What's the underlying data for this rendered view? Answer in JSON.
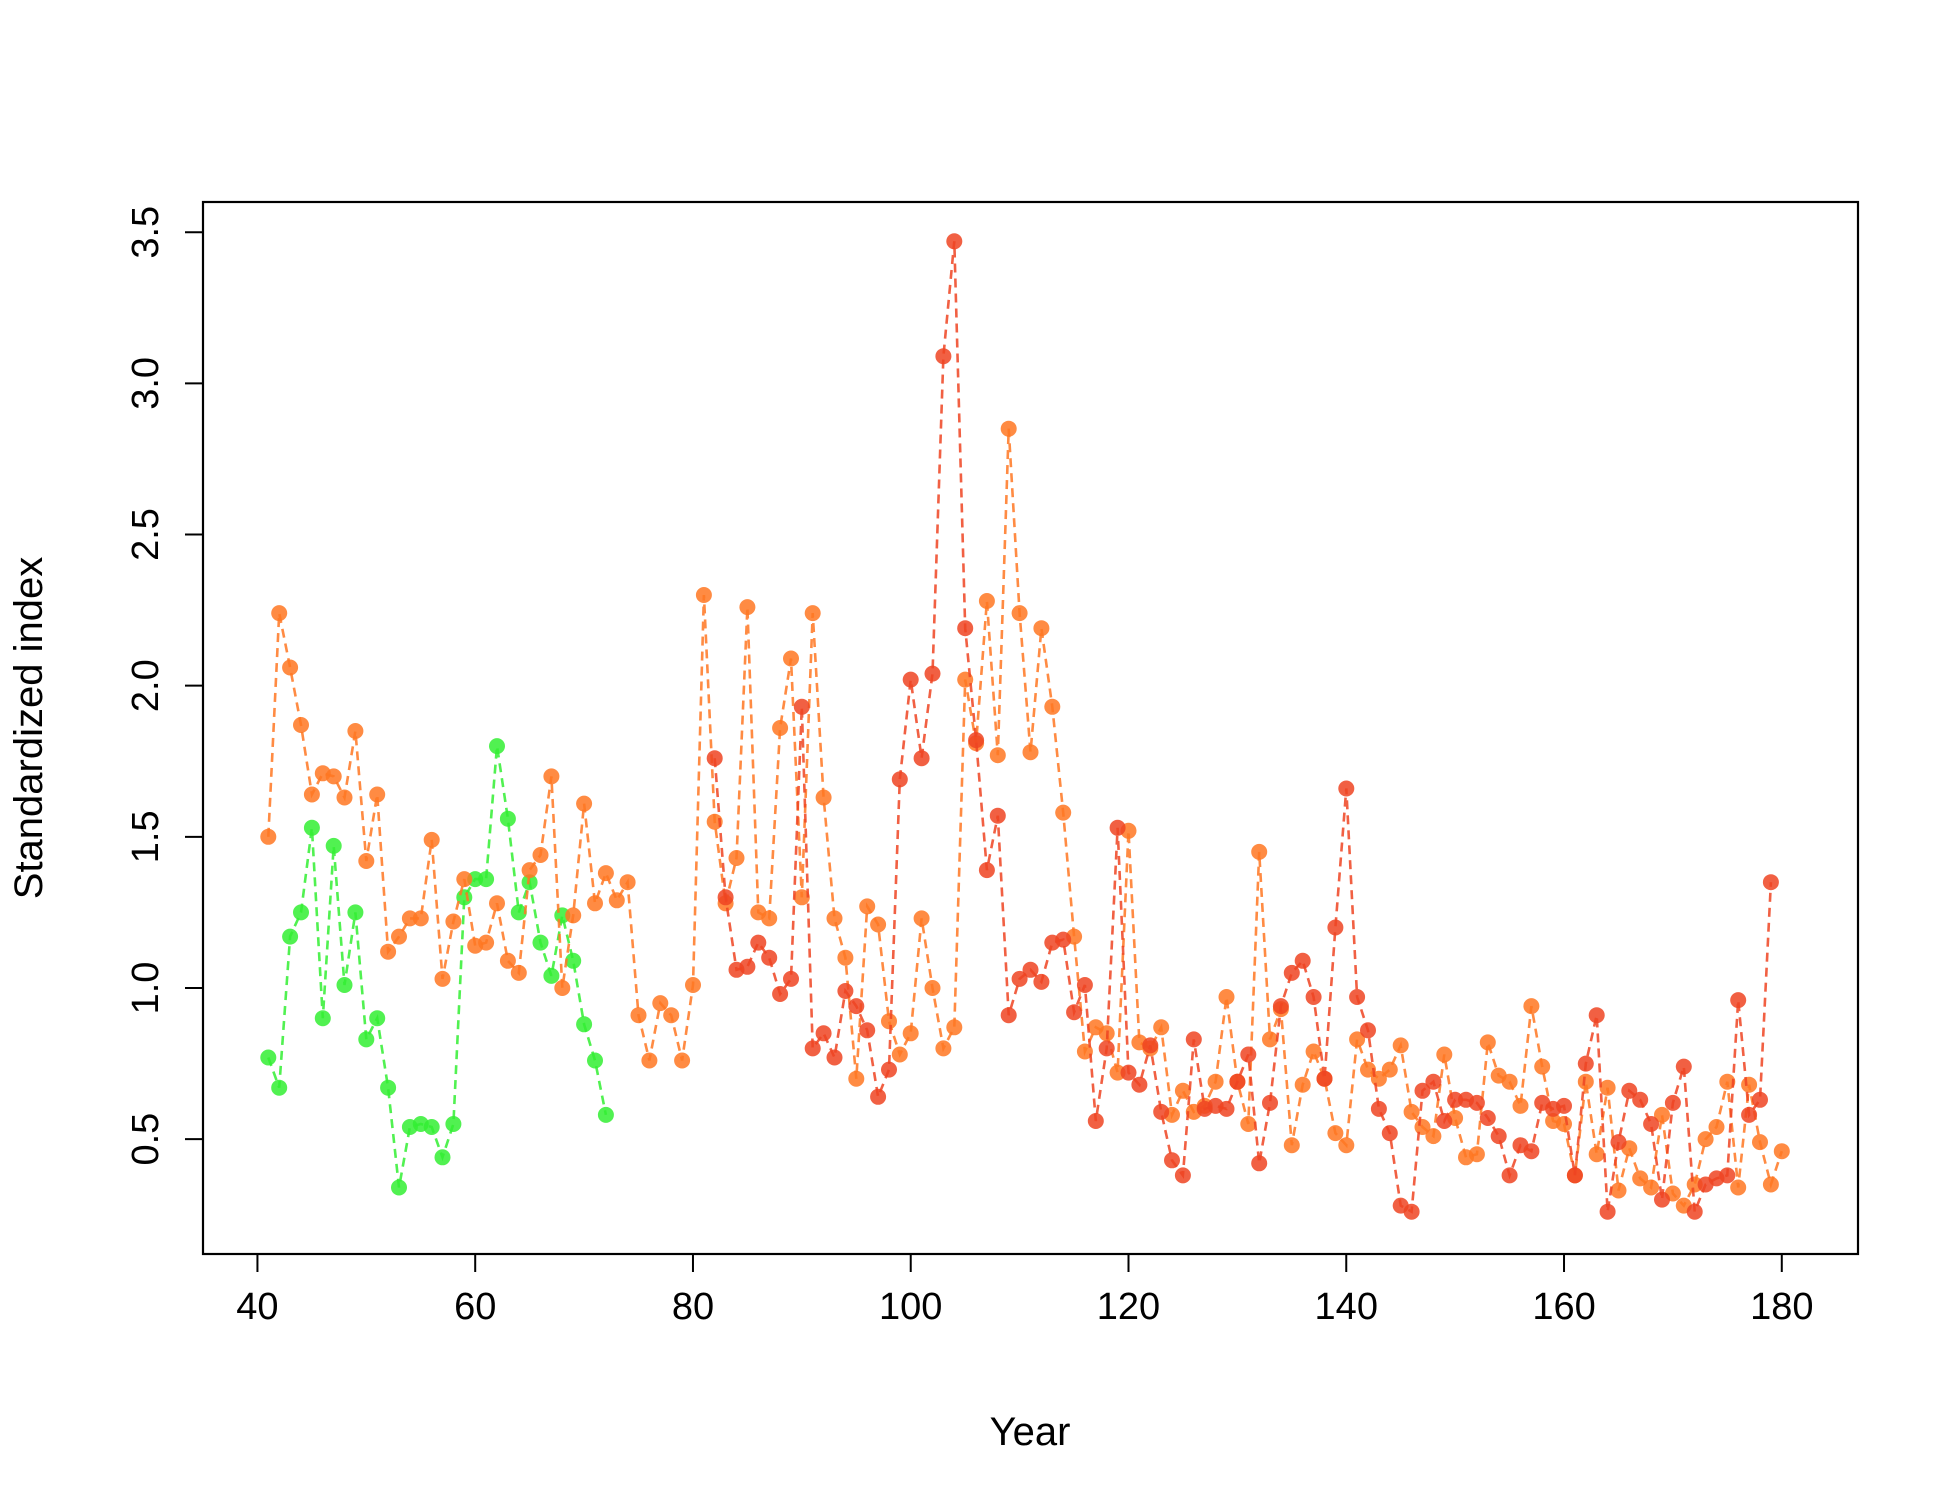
{
  "chart_data": {
    "type": "line",
    "xlabel": "Year",
    "ylabel": "Standardized index",
    "xlim": [
      35,
      187
    ],
    "ylim": [
      0.12,
      3.6
    ],
    "xticks": [
      40,
      60,
      80,
      100,
      120,
      140,
      160,
      180
    ],
    "yticks": [
      0.5,
      1.0,
      1.5,
      2.0,
      2.5,
      3.0,
      3.5
    ],
    "xtick_labels": [
      "40",
      "60",
      "80",
      "100",
      "120",
      "140",
      "160",
      "180"
    ],
    "ytick_labels": [
      "0.5",
      "1.0",
      "1.5",
      "2.0",
      "2.5",
      "3.0",
      "3.5"
    ],
    "grid": false,
    "legend": "none",
    "series": [
      {
        "color": "#33ee33",
        "line_style": "dashed",
        "x": [
          41,
          42,
          43,
          44,
          45,
          46,
          47,
          48,
          49,
          50,
          51,
          52,
          53,
          54,
          55,
          56,
          57,
          58,
          59,
          60,
          61,
          62,
          63,
          64,
          65,
          66,
          67,
          68,
          69,
          70,
          71,
          72
        ],
        "y": [
          0.77,
          0.67,
          1.17,
          1.25,
          1.53,
          0.9,
          1.47,
          1.01,
          1.25,
          0.83,
          0.9,
          0.67,
          0.34,
          0.54,
          0.55,
          0.54,
          0.44,
          0.55,
          1.3,
          1.36,
          1.36,
          1.8,
          1.56,
          1.25,
          1.35,
          1.15,
          1.04,
          1.24,
          1.09,
          0.88,
          0.76,
          0.58
        ]
      },
      {
        "color": "#ff7722",
        "line_style": "dashed",
        "x": [
          41,
          42,
          43,
          44,
          45,
          46,
          47,
          48,
          49,
          50,
          51,
          52,
          53,
          54,
          55,
          56,
          57,
          58,
          59,
          60,
          61,
          62,
          63,
          64,
          65,
          66,
          67,
          68,
          69,
          70,
          71,
          72,
          73,
          74,
          75,
          76,
          77,
          78,
          79,
          80,
          81,
          82,
          83,
          84,
          85,
          86,
          87,
          88,
          89,
          90,
          91,
          92,
          93,
          94,
          95,
          96,
          97,
          98,
          99,
          100,
          101,
          102,
          103,
          104,
          105,
          106,
          107,
          108,
          109,
          110,
          111,
          112,
          113,
          114,
          115,
          116,
          117,
          118,
          119,
          120,
          121,
          122,
          123,
          124,
          125,
          126,
          127,
          128,
          129,
          130,
          131,
          132,
          133,
          134,
          135,
          136,
          137,
          138,
          139,
          140,
          141,
          142,
          143,
          144,
          145,
          146,
          147,
          148,
          149,
          150,
          151,
          152,
          153,
          154,
          155,
          156,
          157,
          158,
          159,
          160,
          161,
          162,
          163,
          164,
          165,
          166,
          167,
          168,
          169,
          170,
          171,
          172,
          173,
          174,
          175,
          176,
          177,
          178,
          179,
          180
        ],
        "y": [
          1.5,
          2.24,
          2.06,
          1.87,
          1.64,
          1.71,
          1.7,
          1.63,
          1.85,
          1.42,
          1.64,
          1.12,
          1.17,
          1.23,
          1.23,
          1.49,
          1.03,
          1.22,
          1.36,
          1.14,
          1.15,
          1.28,
          1.09,
          1.05,
          1.39,
          1.44,
          1.7,
          1.0,
          1.24,
          1.61,
          1.28,
          1.38,
          1.29,
          1.35,
          0.91,
          0.76,
          0.95,
          0.91,
          0.76,
          1.01,
          2.3,
          1.55,
          1.28,
          1.43,
          2.26,
          1.25,
          1.23,
          1.86,
          2.09,
          1.3,
          2.24,
          1.63,
          1.23,
          1.1,
          0.7,
          1.27,
          1.21,
          0.89,
          0.78,
          0.85,
          1.23,
          1.0,
          0.8,
          0.87,
          2.02,
          1.81,
          2.28,
          1.77,
          2.85,
          2.24,
          1.78,
          2.19,
          1.93,
          1.58,
          1.17,
          0.79,
          0.87,
          0.85,
          0.72,
          1.52,
          0.82,
          0.8,
          0.87,
          0.58,
          0.66,
          0.59,
          0.61,
          0.69,
          0.97,
          0.69,
          0.55,
          1.45,
          0.83,
          0.93,
          0.48,
          0.68,
          0.79,
          0.7,
          0.52,
          0.48,
          0.83,
          0.73,
          0.7,
          0.73,
          0.81,
          0.59,
          0.54,
          0.51,
          0.78,
          0.57,
          0.44,
          0.45,
          0.82,
          0.71,
          0.69,
          0.61,
          0.94,
          0.74,
          0.56,
          0.55,
          0.38,
          0.69,
          0.45,
          0.67,
          0.33,
          0.47,
          0.37,
          0.34,
          0.58,
          0.32,
          0.28,
          0.35,
          0.5,
          0.54,
          0.69,
          0.34,
          0.68,
          0.49,
          0.35,
          0.46
        ]
      },
      {
        "color": "#ee4422",
        "line_style": "dashed",
        "x": [
          82,
          83,
          84,
          85,
          86,
          87,
          88,
          89,
          90,
          91,
          92,
          93,
          94,
          95,
          96,
          97,
          98,
          99,
          100,
          101,
          102,
          103,
          104,
          105,
          106,
          107,
          108,
          109,
          110,
          111,
          112,
          113,
          114,
          115,
          116,
          117,
          118,
          119,
          120,
          121,
          122,
          123,
          124,
          125,
          126,
          127,
          128,
          129,
          130,
          131,
          132,
          133,
          134,
          135,
          136,
          137,
          138,
          139,
          140,
          141,
          142,
          143,
          144,
          145,
          146,
          147,
          148,
          149,
          150,
          151,
          152,
          153,
          154,
          155,
          156,
          157,
          158,
          159,
          160,
          161,
          162,
          163,
          164,
          165,
          166,
          167,
          168,
          169,
          170,
          171,
          172,
          173,
          174,
          175,
          176,
          177,
          178,
          179
        ],
        "y": [
          1.76,
          1.3,
          1.06,
          1.07,
          1.15,
          1.1,
          0.98,
          1.03,
          1.93,
          0.8,
          0.85,
          0.77,
          0.99,
          0.94,
          0.86,
          0.64,
          0.73,
          1.69,
          2.02,
          1.76,
          2.04,
          3.09,
          3.47,
          2.19,
          1.82,
          1.39,
          1.57,
          0.91,
          1.03,
          1.06,
          1.02,
          1.15,
          1.16,
          0.92,
          1.01,
          0.56,
          0.8,
          1.53,
          0.72,
          0.68,
          0.81,
          0.59,
          0.43,
          0.38,
          0.83,
          0.6,
          0.61,
          0.6,
          0.69,
          0.78,
          0.42,
          0.62,
          0.94,
          1.05,
          1.09,
          0.97,
          0.7,
          1.2,
          1.66,
          0.97,
          0.86,
          0.6,
          0.52,
          0.28,
          0.26,
          0.66,
          0.69,
          0.56,
          0.63,
          0.63,
          0.62,
          0.57,
          0.51,
          0.38,
          0.48,
          0.46,
          0.62,
          0.6,
          0.61,
          0.38,
          0.75,
          0.91,
          0.26,
          0.49,
          0.66,
          0.63,
          0.55,
          0.3,
          0.62,
          0.74,
          0.26,
          0.35,
          0.37,
          0.38,
          0.96,
          0.58,
          0.63,
          1.35
        ]
      }
    ]
  }
}
